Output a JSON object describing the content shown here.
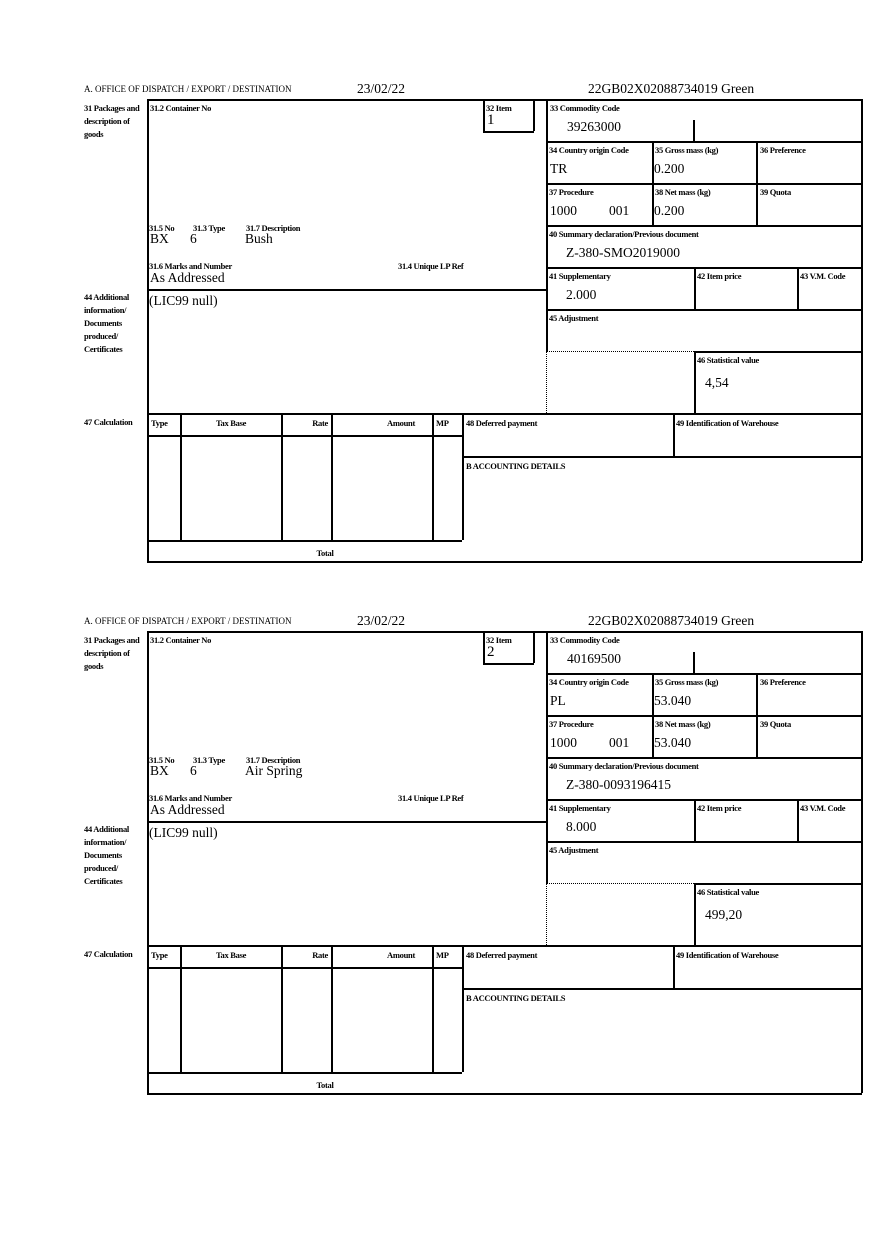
{
  "items": [
    {
      "header": {
        "office": "A.  OFFICE OF DISPATCH / EXPORT / DESTINATION",
        "date": "23/02/22",
        "reference": "22GB02X02088734019    Green"
      },
      "labels": {
        "packages": "31 Packages and description of goods",
        "container_no": "31.2 Container No",
        "item": "32 Item",
        "no": "31.5 No",
        "type": "31.3 Type",
        "description": "31.7 Description",
        "marks": "31.6 Marks and Number",
        "unique_lp": "31.4 Unique LP Ref",
        "additional": "44 Additional information/ Documents produced/ Certificates",
        "calculation": "47 Calculation",
        "col_type": "Type",
        "col_tax_base": "Tax Base",
        "col_rate": "Rate",
        "col_amount": "Amount",
        "col_mp": "MP",
        "total": "Total",
        "deferred": "48 Deferred payment",
        "warehouse": "49 Identification of Warehouse",
        "accounting": "B ACCOUNTING DETAILS",
        "commodity": "33 Commodity Code",
        "country": "34 Country origin Code",
        "gross": "35 Gross mass (kg)",
        "preference": "36 Preference",
        "procedure": "37 Procedure",
        "net": "38 Net mass (kg)",
        "quota": "39 Quota",
        "summary": "40 Summary declaration/Previous document",
        "supplementary": "41 Supplementary",
        "item_price": "42 Item price",
        "vm_code": "43 V.M. Code",
        "adjustment": "45 Adjustment",
        "statistical": "46 Statistical value"
      },
      "values": {
        "item": "1",
        "no": "BX",
        "type": "6",
        "description": "Bush",
        "marks": "As Addressed",
        "additional": "(LIC99 null)",
        "commodity": "39263000",
        "country": "TR",
        "gross": "0.200",
        "procedure": "1000",
        "procedure_ext": "001",
        "net": "0.200",
        "summary": "Z-380-SMO2019000",
        "supplementary": "2.000",
        "statistical": "4,54"
      }
    },
    {
      "header": {
        "office": "A.  OFFICE OF DISPATCH / EXPORT / DESTINATION",
        "date": "23/02/22",
        "reference": "22GB02X02088734019    Green"
      },
      "labels": {
        "packages": "31 Packages and description of goods",
        "container_no": "31.2 Container No",
        "item": "32 Item",
        "no": "31.5 No",
        "type": "31.3 Type",
        "description": "31.7 Description",
        "marks": "31.6 Marks and Number",
        "unique_lp": "31.4 Unique LP Ref",
        "additional": "44 Additional information/ Documents produced/ Certificates",
        "calculation": "47 Calculation",
        "col_type": "Type",
        "col_tax_base": "Tax Base",
        "col_rate": "Rate",
        "col_amount": "Amount",
        "col_mp": "MP",
        "total": "Total",
        "deferred": "48 Deferred payment",
        "warehouse": "49 Identification of Warehouse",
        "accounting": "B ACCOUNTING DETAILS",
        "commodity": "33 Commodity Code",
        "country": "34 Country origin Code",
        "gross": "35 Gross mass (kg)",
        "preference": "36 Preference",
        "procedure": "37 Procedure",
        "net": "38 Net mass (kg)",
        "quota": "39 Quota",
        "summary": "40 Summary declaration/Previous document",
        "supplementary": "41 Supplementary",
        "item_price": "42 Item price",
        "vm_code": "43 V.M. Code",
        "adjustment": "45 Adjustment",
        "statistical": "46 Statistical value"
      },
      "values": {
        "item": "2",
        "no": "BX",
        "type": "6",
        "description": "Air Spring",
        "marks": "As Addressed",
        "additional": "(LIC99 null)",
        "commodity": "40169500",
        "country": "PL",
        "gross": "53.040",
        "procedure": "1000",
        "procedure_ext": "001",
        "net": "53.040",
        "summary": "Z-380-0093196415",
        "supplementary": "8.000",
        "statistical": "499,20"
      }
    }
  ]
}
